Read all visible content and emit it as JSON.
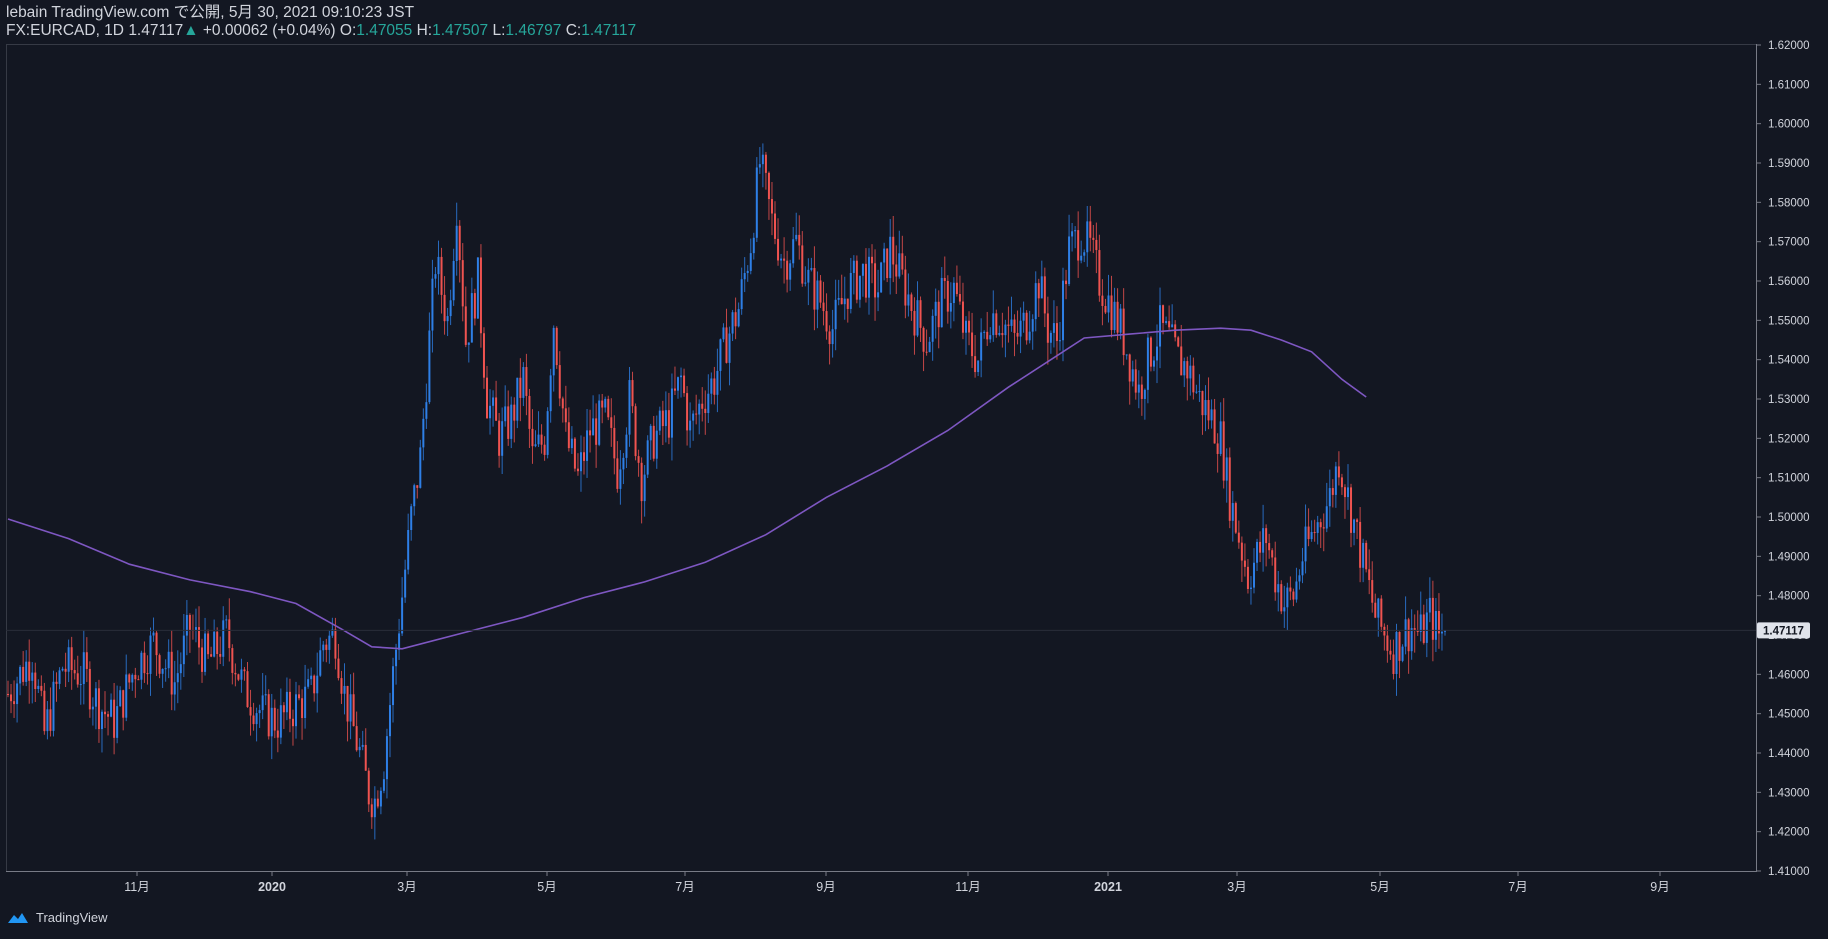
{
  "header": {
    "publisher": "lebain TradingView.com で公開, 5月 30, 2021 09:10:23 JST",
    "symbol": "FX:EURCAD, 1D",
    "last": "1.47117",
    "change": "+0.00062 (+0.04%)",
    "o_label": "O:",
    "o_value": "1.47055",
    "h_label": "H:",
    "h_value": "1.47507",
    "l_label": "L:",
    "l_value": "1.46797",
    "c_label": "C:",
    "c_value": "1.47117"
  },
  "footer": {
    "brand": "TradingView"
  },
  "colors": {
    "background": "#131722",
    "up": "#2e7fe6",
    "down": "#ef5350",
    "ma": "#7e57c2",
    "text": "#d1d4dc",
    "grid": "#363a45",
    "price_tag": "#e0e3eb"
  },
  "chart_data": {
    "type": "candlestick",
    "symbol": "FX:EURCAD",
    "interval": "1D",
    "ylim": [
      1.41,
      1.62
    ],
    "y_ticks": [
      "1.41000",
      "1.42000",
      "1.43000",
      "1.44000",
      "1.45000",
      "1.46000",
      "1.47000",
      "1.48000",
      "1.49000",
      "1.50000",
      "1.51000",
      "1.52000",
      "1.53000",
      "1.54000",
      "1.55000",
      "1.56000",
      "1.57000",
      "1.58000",
      "1.59000",
      "1.60000",
      "1.61000",
      "1.62000"
    ],
    "x_ticks": [
      "11月",
      "2020",
      "3月",
      "5月",
      "7月",
      "9月",
      "11月",
      "2021",
      "3月",
      "5月",
      "7月",
      "9月"
    ],
    "last_price_label": "1.47117",
    "close_path": [
      [
        0,
        1.455
      ],
      [
        8,
        1.465
      ],
      [
        12,
        1.445
      ],
      [
        18,
        1.462
      ],
      [
        25,
        1.46
      ],
      [
        30,
        1.452
      ],
      [
        35,
        1.448
      ],
      [
        42,
        1.462
      ],
      [
        48,
        1.468
      ],
      [
        55,
        1.458
      ],
      [
        60,
        1.472
      ],
      [
        66,
        1.463
      ],
      [
        72,
        1.47
      ],
      [
        78,
        1.456
      ],
      [
        84,
        1.45
      ],
      [
        89,
        1.448
      ],
      [
        95,
        1.452
      ],
      [
        100,
        1.455
      ],
      [
        104,
        1.468
      ],
      [
        108,
        1.47
      ],
      [
        111,
        1.455
      ],
      [
        116,
        1.44
      ],
      [
        119,
        1.43
      ],
      [
        121,
        1.428
      ],
      [
        124,
        1.438
      ],
      [
        127,
        1.46
      ],
      [
        130,
        1.48
      ],
      [
        133,
        1.5
      ],
      [
        136,
        1.515
      ],
      [
        138,
        1.535
      ],
      [
        141,
        1.565
      ],
      [
        145,
        1.55
      ],
      [
        148,
        1.58
      ],
      [
        151,
        1.545
      ],
      [
        155,
        1.56
      ],
      [
        158,
        1.53
      ],
      [
        162,
        1.52
      ],
      [
        166,
        1.525
      ],
      [
        170,
        1.535
      ],
      [
        173,
        1.515
      ],
      [
        177,
        1.52
      ],
      [
        180,
        1.55
      ],
      [
        184,
        1.52
      ],
      [
        188,
        1.51
      ],
      [
        192,
        1.522
      ],
      [
        197,
        1.525
      ],
      [
        201,
        1.512
      ],
      [
        205,
        1.53
      ],
      [
        209,
        1.51
      ],
      [
        213,
        1.52
      ],
      [
        218,
        1.525
      ],
      [
        222,
        1.535
      ],
      [
        225,
        1.522
      ],
      [
        229,
        1.53
      ],
      [
        233,
        1.535
      ],
      [
        237,
        1.545
      ],
      [
        241,
        1.553
      ],
      [
        245,
        1.57
      ],
      [
        248,
        1.59
      ],
      [
        252,
        1.575
      ],
      [
        256,
        1.565
      ],
      [
        260,
        1.57
      ],
      [
        264,
        1.56
      ],
      [
        268,
        1.555
      ],
      [
        272,
        1.548
      ],
      [
        277,
        1.558
      ],
      [
        282,
        1.562
      ],
      [
        287,
        1.558
      ],
      [
        291,
        1.568
      ],
      [
        295,
        1.56
      ],
      [
        299,
        1.552
      ],
      [
        303,
        1.545
      ],
      [
        308,
        1.555
      ],
      [
        312,
        1.558
      ],
      [
        316,
        1.545
      ],
      [
        320,
        1.54
      ],
      [
        324,
        1.552
      ],
      [
        328,
        1.55
      ],
      [
        332,
        1.545
      ],
      [
        336,
        1.55
      ],
      [
        340,
        1.56
      ],
      [
        343,
        1.548
      ],
      [
        346,
        1.545
      ],
      [
        350,
        1.568
      ],
      [
        354,
        1.572
      ],
      [
        357,
        1.568
      ],
      [
        360,
        1.56
      ],
      [
        363,
        1.555
      ],
      [
        367,
        1.548
      ],
      [
        370,
        1.54
      ],
      [
        373,
        1.532
      ],
      [
        376,
        1.54
      ],
      [
        380,
        1.548
      ],
      [
        383,
        1.545
      ],
      [
        386,
        1.54
      ],
      [
        389,
        1.538
      ],
      [
        393,
        1.53
      ],
      [
        397,
        1.525
      ],
      [
        400,
        1.52
      ],
      [
        403,
        1.505
      ],
      [
        406,
        1.495
      ],
      [
        409,
        1.485
      ],
      [
        412,
        1.49
      ],
      [
        415,
        1.495
      ],
      [
        418,
        1.485
      ],
      [
        421,
        1.478
      ],
      [
        424,
        1.48
      ],
      [
        427,
        1.49
      ],
      [
        430,
        1.495
      ],
      [
        433,
        1.5
      ],
      [
        436,
        1.505
      ],
      [
        439,
        1.515
      ],
      [
        442,
        1.505
      ],
      [
        445,
        1.495
      ],
      [
        448,
        1.485
      ],
      [
        451,
        1.475
      ],
      [
        454,
        1.47
      ],
      [
        457,
        1.466
      ],
      [
        460,
        1.47
      ],
      [
        463,
        1.472
      ],
      [
        466,
        1.47
      ],
      [
        469,
        1.475
      ],
      [
        472,
        1.47
      ],
      [
        474,
        1.471
      ]
    ],
    "series": [
      {
        "name": "",
        "type": "line",
        "points": [
          [
            0,
            1.4995
          ],
          [
            20,
            1.4945
          ],
          [
            40,
            1.488
          ],
          [
            60,
            1.484
          ],
          [
            80,
            1.481
          ],
          [
            95,
            1.478
          ],
          [
            110,
            1.4715
          ],
          [
            120,
            1.467
          ],
          [
            130,
            1.4665
          ],
          [
            150,
            1.4705
          ],
          [
            170,
            1.4745
          ],
          [
            190,
            1.4795
          ],
          [
            210,
            1.4835
          ],
          [
            230,
            1.4885
          ],
          [
            250,
            1.4955
          ],
          [
            270,
            1.505
          ],
          [
            290,
            1.513
          ],
          [
            310,
            1.522
          ],
          [
            330,
            1.533
          ],
          [
            345,
            1.5405
          ],
          [
            355,
            1.5455
          ],
          [
            370,
            1.5465
          ],
          [
            385,
            1.5475
          ],
          [
            400,
            1.548
          ],
          [
            410,
            1.5475
          ],
          [
            420,
            1.545
          ],
          [
            430,
            1.542
          ],
          [
            440,
            1.535
          ],
          [
            448,
            1.5305
          ]
        ]
      }
    ]
  }
}
